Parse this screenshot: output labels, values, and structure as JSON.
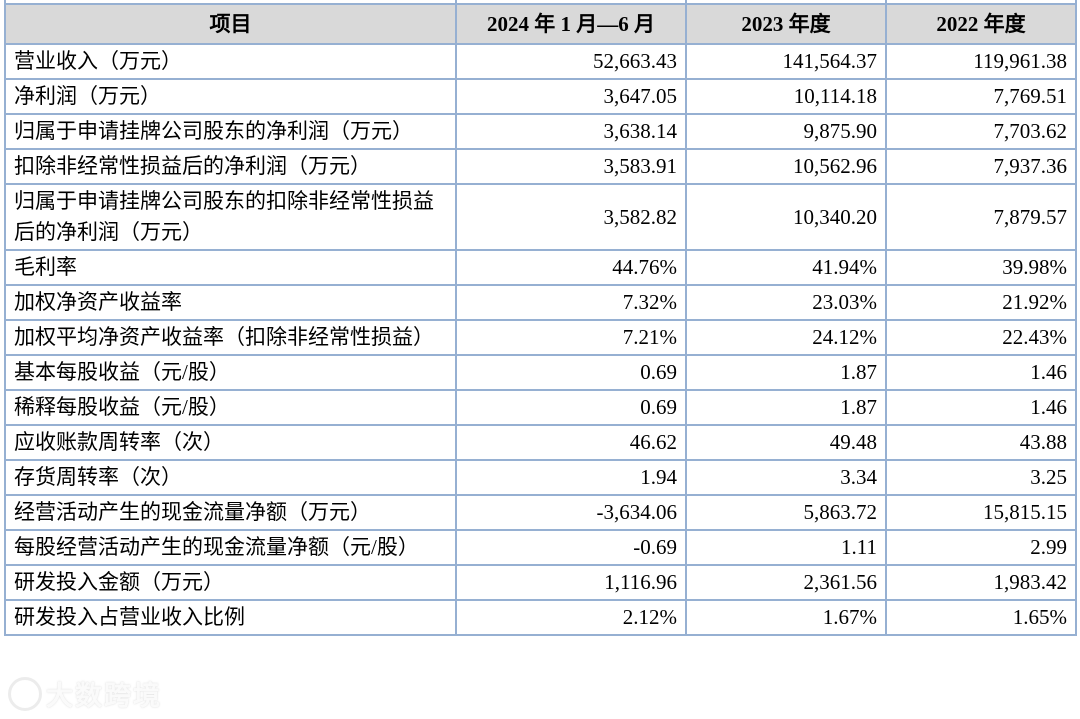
{
  "colors": {
    "header_bg": "#d9d9d9",
    "border": "#96b0d2",
    "text": "#000000"
  },
  "watermark": {
    "text": "大数跨境"
  },
  "table": {
    "columns": [
      {
        "label": "项目"
      },
      {
        "label": "2024 年 1 月—6 月"
      },
      {
        "label": "2023 年度"
      },
      {
        "label": "2022 年度"
      }
    ],
    "rows": [
      {
        "item": "营业收入（万元）",
        "values": [
          "52,663.43",
          "141,564.37",
          "119,961.38"
        ]
      },
      {
        "item": "净利润（万元）",
        "values": [
          "3,647.05",
          "10,114.18",
          "7,769.51"
        ]
      },
      {
        "item": "归属于申请挂牌公司股东的净利润（万元）",
        "values": [
          "3,638.14",
          "9,875.90",
          "7,703.62"
        ]
      },
      {
        "item": "扣除非经常性损益后的净利润（万元）",
        "values": [
          "3,583.91",
          "10,562.96",
          "7,937.36"
        ]
      },
      {
        "item": "归属于申请挂牌公司股东的扣除非经常性损益后的净利润（万元）",
        "values": [
          "3,582.82",
          "10,340.20",
          "7,879.57"
        ]
      },
      {
        "item": "毛利率",
        "values": [
          "44.76%",
          "41.94%",
          "39.98%"
        ]
      },
      {
        "item": "加权净资产收益率",
        "values": [
          "7.32%",
          "23.03%",
          "21.92%"
        ]
      },
      {
        "item": "加权平均净资产收益率（扣除非经常性损益）",
        "values": [
          "7.21%",
          "24.12%",
          "22.43%"
        ]
      },
      {
        "item": "基本每股收益（元/股）",
        "values": [
          "0.69",
          "1.87",
          "1.46"
        ]
      },
      {
        "item": "稀释每股收益（元/股）",
        "values": [
          "0.69",
          "1.87",
          "1.46"
        ]
      },
      {
        "item": "应收账款周转率（次）",
        "values": [
          "46.62",
          "49.48",
          "43.88"
        ]
      },
      {
        "item": "存货周转率（次）",
        "values": [
          "1.94",
          "3.34",
          "3.25"
        ]
      },
      {
        "item": "经营活动产生的现金流量净额（万元）",
        "values": [
          "-3,634.06",
          "5,863.72",
          "15,815.15"
        ]
      },
      {
        "item": "每股经营活动产生的现金流量净额（元/股）",
        "values": [
          "-0.69",
          "1.11",
          "2.99"
        ]
      },
      {
        "item": "研发投入金额（万元）",
        "values": [
          "1,116.96",
          "2,361.56",
          "1,983.42"
        ]
      },
      {
        "item": "研发投入占营业收入比例",
        "values": [
          "2.12%",
          "1.67%",
          "1.65%"
        ]
      }
    ]
  }
}
